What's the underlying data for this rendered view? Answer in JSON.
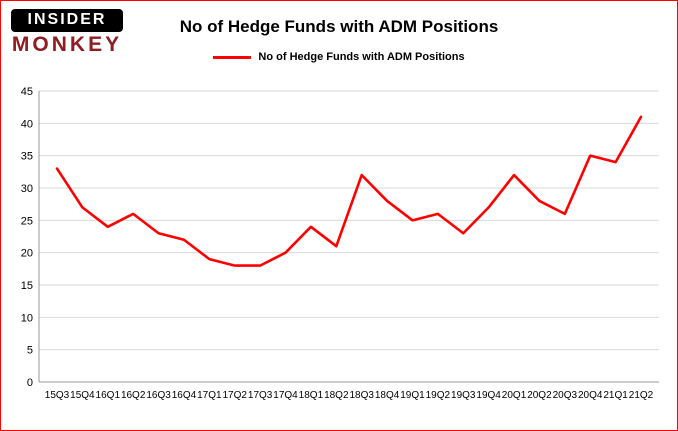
{
  "header": {
    "logo_top": "INSIDER",
    "logo_bottom": "MONKEY",
    "title": "No of Hedge Funds with ADM Positions",
    "legend_label": "No of Hedge Funds with ADM Positions"
  },
  "colors": {
    "line": "#ff0000",
    "grid": "#d9d9d9",
    "axis": "#999999",
    "border": "#ff0000",
    "logo_black": "#000000",
    "logo_red": "#8f1d21",
    "text": "#000000"
  },
  "chart_data": {
    "type": "line",
    "title": "No of Hedge Funds with ADM Positions",
    "xlabel": "",
    "ylabel": "",
    "ylim": [
      0,
      45
    ],
    "ytick_interval": 5,
    "grid": true,
    "legend_position": "top",
    "categories": [
      "15Q3",
      "15Q4",
      "16Q1",
      "16Q2",
      "16Q3",
      "16Q4",
      "17Q1",
      "17Q2",
      "17Q3",
      "17Q4",
      "18Q1",
      "18Q2",
      "18Q3",
      "18Q4",
      "19Q1",
      "19Q2",
      "19Q3",
      "19Q4",
      "20Q1",
      "20Q2",
      "20Q3",
      "20Q4",
      "21Q1",
      "21Q2"
    ],
    "series": [
      {
        "name": "No of Hedge Funds with ADM Positions",
        "values": [
          33,
          27,
          24,
          26,
          23,
          22,
          19,
          18,
          18,
          20,
          24,
          21,
          32,
          28,
          25,
          26,
          23,
          27,
          32,
          28,
          26,
          35,
          34,
          41
        ]
      }
    ]
  }
}
